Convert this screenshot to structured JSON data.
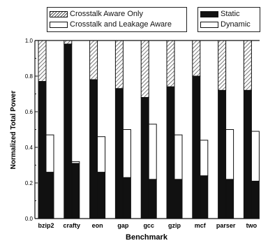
{
  "chart_data": {
    "type": "bar",
    "ylabel": "Normalized Total Power",
    "xlabel": "Benchmark",
    "ylim": [
      0.0,
      1.0
    ],
    "yticks": [
      "0.0",
      "0.2",
      "0.4",
      "0.6",
      "0.8",
      "1.0"
    ],
    "categories": [
      "bzip2",
      "crafty",
      "eon",
      "gap",
      "gcc",
      "gzip",
      "mcf",
      "parser",
      "twolf"
    ],
    "category_labels": [
      "bzip2",
      "crafty",
      "eon",
      "gap",
      "gcc",
      "gzip",
      "mcf",
      "parser",
      "two"
    ],
    "legend_schemes": [
      "Crosstalk Aware Only",
      "Crosstalk and Leakage Aware"
    ],
    "legend_components": [
      "Static",
      "Dynamic"
    ],
    "series": [
      {
        "name": "Crosstalk Aware Only",
        "total": [
          1.0,
          1.0,
          1.0,
          1.0,
          1.0,
          1.0,
          1.0,
          1.0,
          1.0
        ],
        "static": [
          0.77,
          0.98,
          0.78,
          0.73,
          0.68,
          0.74,
          0.8,
          0.72,
          0.72
        ]
      },
      {
        "name": "Crosstalk and Leakage Aware",
        "total": [
          0.47,
          0.32,
          0.46,
          0.5,
          0.53,
          0.47,
          0.44,
          0.5,
          0.49
        ],
        "static": [
          0.26,
          0.31,
          0.26,
          0.23,
          0.22,
          0.22,
          0.24,
          0.22,
          0.21
        ]
      }
    ],
    "colors": {
      "static": "#111111",
      "dynamic": "#ffffff",
      "hatch": "#555555",
      "axis": "#111111"
    }
  }
}
